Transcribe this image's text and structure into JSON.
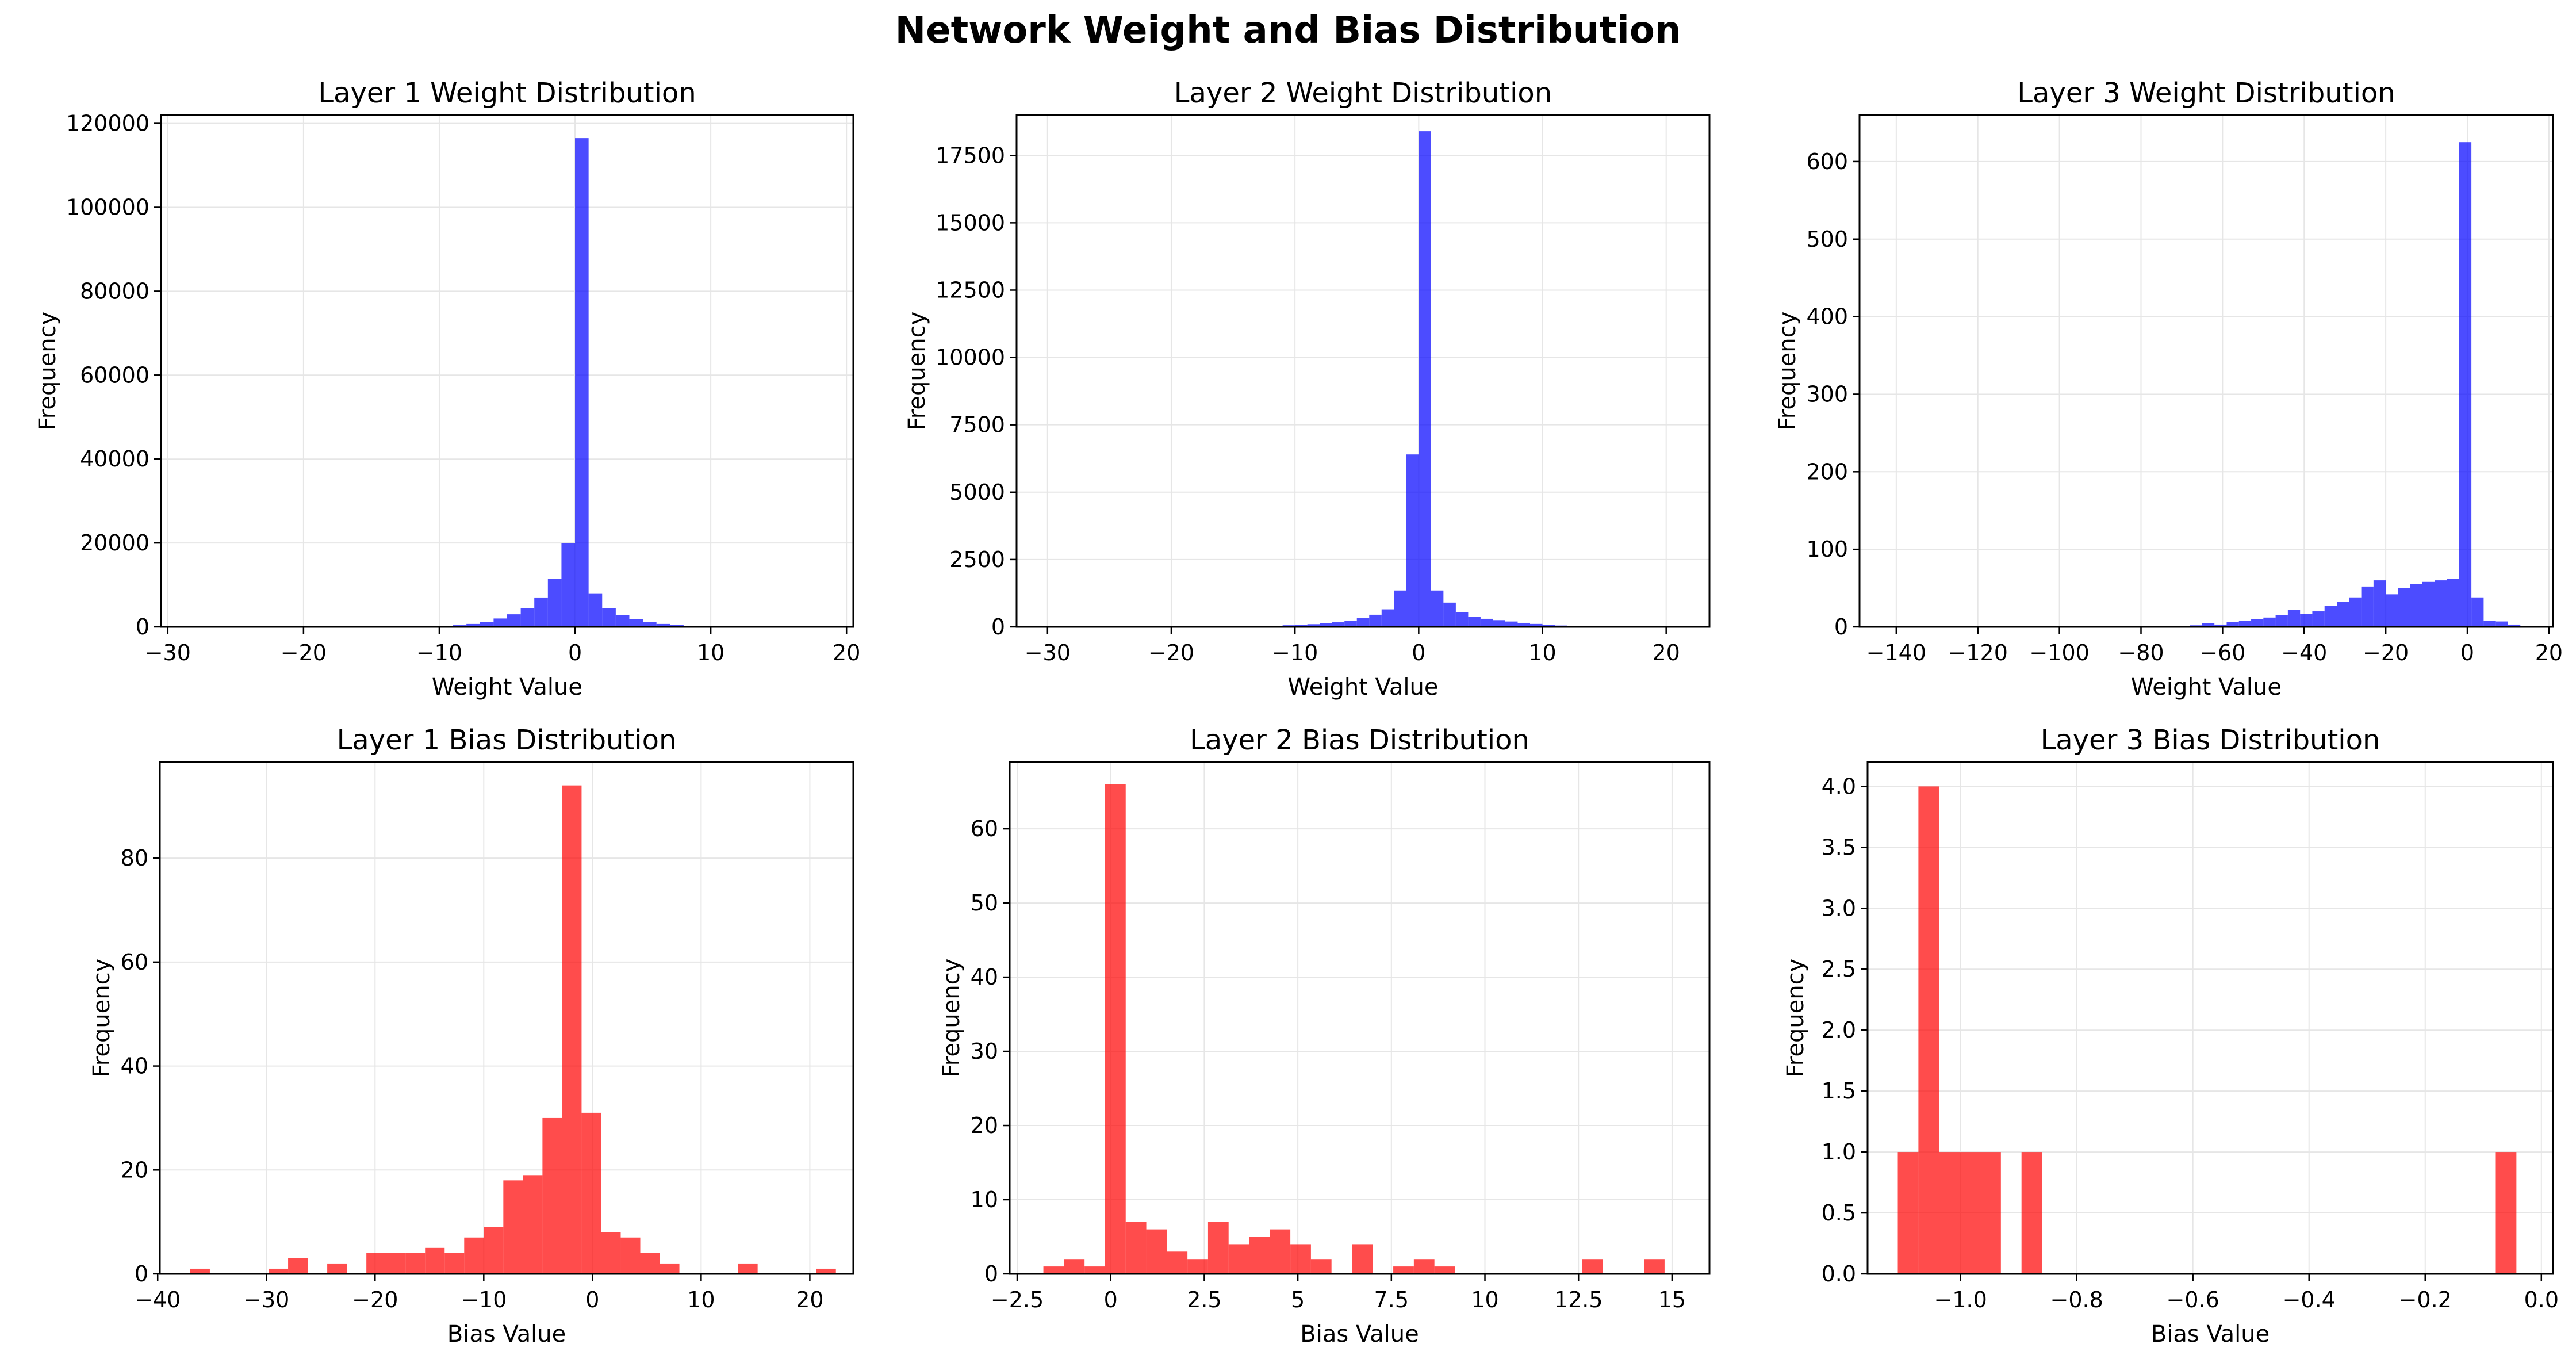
{
  "figure": {
    "title": "Network Weight and Bias Distribution"
  },
  "chart_data": [
    {
      "type": "bar",
      "title": "Layer 1 Weight Distribution",
      "xlabel": "Weight Value",
      "ylabel": "Frequency",
      "color": "#0000ff",
      "xlim": [
        -30.5,
        20.5
      ],
      "ylim": [
        0,
        122000
      ],
      "grid": true,
      "xticks": [
        -30,
        -20,
        -10,
        0,
        10,
        20
      ],
      "yticks": [
        0,
        20000,
        40000,
        60000,
        80000,
        100000,
        120000
      ],
      "bins": [
        {
          "x0": -13.0,
          "x1": -12.0,
          "y": 50
        },
        {
          "x0": -12.0,
          "x1": -11.0,
          "y": 80
        },
        {
          "x0": -11.0,
          "x1": -10.0,
          "y": 120
        },
        {
          "x0": -10.0,
          "x1": -9.0,
          "y": 200
        },
        {
          "x0": -9.0,
          "x1": -8.0,
          "y": 400
        },
        {
          "x0": -8.0,
          "x1": -7.0,
          "y": 700
        },
        {
          "x0": -7.0,
          "x1": -6.0,
          "y": 1200
        },
        {
          "x0": -6.0,
          "x1": -5.0,
          "y": 2000
        },
        {
          "x0": -5.0,
          "x1": -4.0,
          "y": 3000
        },
        {
          "x0": -4.0,
          "x1": -3.0,
          "y": 4500
        },
        {
          "x0": -3.0,
          "x1": -2.0,
          "y": 7000
        },
        {
          "x0": -2.0,
          "x1": -1.0,
          "y": 11500
        },
        {
          "x0": -1.0,
          "x1": 0.0,
          "y": 20000
        },
        {
          "x0": 0.0,
          "x1": 1.0,
          "y": 116500
        },
        {
          "x0": 1.0,
          "x1": 2.0,
          "y": 8000
        },
        {
          "x0": 2.0,
          "x1": 3.0,
          "y": 4500
        },
        {
          "x0": 3.0,
          "x1": 4.0,
          "y": 2800
        },
        {
          "x0": 4.0,
          "x1": 5.0,
          "y": 1800
        },
        {
          "x0": 5.0,
          "x1": 6.0,
          "y": 1100
        },
        {
          "x0": 6.0,
          "x1": 7.0,
          "y": 700
        },
        {
          "x0": 7.0,
          "x1": 8.0,
          "y": 450
        },
        {
          "x0": 8.0,
          "x1": 9.0,
          "y": 250
        },
        {
          "x0": 9.0,
          "x1": 10.0,
          "y": 150
        },
        {
          "x0": 10.0,
          "x1": 11.0,
          "y": 80
        }
      ]
    },
    {
      "type": "bar",
      "title": "Layer 2 Weight Distribution",
      "xlabel": "Weight Value",
      "ylabel": "Frequency",
      "color": "#0000ff",
      "xlim": [
        -32.5,
        23.5
      ],
      "ylim": [
        0,
        19000
      ],
      "grid": true,
      "xticks": [
        -30,
        -20,
        -10,
        0,
        10,
        20
      ],
      "yticks": [
        0,
        2500,
        5000,
        7500,
        10000,
        12500,
        15000,
        17500
      ],
      "bins": [
        {
          "x0": -14.0,
          "x1": -13.0,
          "y": 10
        },
        {
          "x0": -13.0,
          "x1": -12.0,
          "y": 20
        },
        {
          "x0": -12.0,
          "x1": -11.0,
          "y": 40
        },
        {
          "x0": -11.0,
          "x1": -10.0,
          "y": 60
        },
        {
          "x0": -10.0,
          "x1": -9.0,
          "y": 80
        },
        {
          "x0": -9.0,
          "x1": -8.0,
          "y": 100
        },
        {
          "x0": -8.0,
          "x1": -7.0,
          "y": 130
        },
        {
          "x0": -7.0,
          "x1": -6.0,
          "y": 170
        },
        {
          "x0": -6.0,
          "x1": -5.0,
          "y": 230
        },
        {
          "x0": -5.0,
          "x1": -4.0,
          "y": 320
        },
        {
          "x0": -4.0,
          "x1": -3.0,
          "y": 450
        },
        {
          "x0": -3.0,
          "x1": -2.0,
          "y": 650
        },
        {
          "x0": -2.0,
          "x1": -1.0,
          "y": 1350
        },
        {
          "x0": -1.0,
          "x1": 0.0,
          "y": 6400
        },
        {
          "x0": 0.0,
          "x1": 1.0,
          "y": 18400
        },
        {
          "x0": 1.0,
          "x1": 2.0,
          "y": 1350
        },
        {
          "x0": 2.0,
          "x1": 3.0,
          "y": 900
        },
        {
          "x0": 3.0,
          "x1": 4.0,
          "y": 550
        },
        {
          "x0": 4.0,
          "x1": 5.0,
          "y": 380
        },
        {
          "x0": 5.0,
          "x1": 6.0,
          "y": 300
        },
        {
          "x0": 6.0,
          "x1": 7.0,
          "y": 250
        },
        {
          "x0": 7.0,
          "x1": 8.0,
          "y": 200
        },
        {
          "x0": 8.0,
          "x1": 9.0,
          "y": 150
        },
        {
          "x0": 9.0,
          "x1": 10.0,
          "y": 110
        },
        {
          "x0": 10.0,
          "x1": 11.0,
          "y": 80
        },
        {
          "x0": 11.0,
          "x1": 12.0,
          "y": 50
        },
        {
          "x0": 12.0,
          "x1": 13.0,
          "y": 30
        },
        {
          "x0": 13.0,
          "x1": 14.0,
          "y": 15
        }
      ]
    },
    {
      "type": "bar",
      "title": "Layer 3 Weight Distribution",
      "xlabel": "Weight Value",
      "ylabel": "Frequency",
      "color": "#0000ff",
      "xlim": [
        -149,
        21
      ],
      "ylim": [
        0,
        660
      ],
      "grid": true,
      "xticks": [
        -140,
        -120,
        -100,
        -80,
        -60,
        -40,
        -20,
        0,
        20
      ],
      "yticks": [
        0,
        100,
        200,
        300,
        400,
        500,
        600
      ],
      "bins": [
        {
          "x0": -140.0,
          "x1": -137.0,
          "y": 1
        },
        {
          "x0": -119.0,
          "x1": -116.0,
          "y": 1
        },
        {
          "x0": -101.0,
          "x1": -98.0,
          "y": 1
        },
        {
          "x0": -86.0,
          "x1": -83.0,
          "y": 1
        },
        {
          "x0": -80.0,
          "x1": -77.0,
          "y": 1
        },
        {
          "x0": -74.0,
          "x1": -71.0,
          "y": 1
        },
        {
          "x0": -68.0,
          "x1": -65.0,
          "y": 2
        },
        {
          "x0": -65.0,
          "x1": -62.0,
          "y": 5
        },
        {
          "x0": -62.0,
          "x1": -59.0,
          "y": 3
        },
        {
          "x0": -59.0,
          "x1": -56.0,
          "y": 6
        },
        {
          "x0": -56.0,
          "x1": -53.0,
          "y": 8
        },
        {
          "x0": -53.0,
          "x1": -50.0,
          "y": 10
        },
        {
          "x0": -50.0,
          "x1": -47.0,
          "y": 12
        },
        {
          "x0": -47.0,
          "x1": -44.0,
          "y": 15
        },
        {
          "x0": -44.0,
          "x1": -41.0,
          "y": 22
        },
        {
          "x0": -41.0,
          "x1": -38.0,
          "y": 17
        },
        {
          "x0": -38.0,
          "x1": -35.0,
          "y": 20
        },
        {
          "x0": -35.0,
          "x1": -32.0,
          "y": 27
        },
        {
          "x0": -32.0,
          "x1": -29.0,
          "y": 32
        },
        {
          "x0": -29.0,
          "x1": -26.0,
          "y": 38
        },
        {
          "x0": -26.0,
          "x1": -23.0,
          "y": 52
        },
        {
          "x0": -23.0,
          "x1": -20.0,
          "y": 60
        },
        {
          "x0": -20.0,
          "x1": -17.0,
          "y": 42
        },
        {
          "x0": -17.0,
          "x1": -14.0,
          "y": 50
        },
        {
          "x0": -14.0,
          "x1": -11.0,
          "y": 55
        },
        {
          "x0": -11.0,
          "x1": -8.0,
          "y": 58
        },
        {
          "x0": -8.0,
          "x1": -5.0,
          "y": 60
        },
        {
          "x0": -5.0,
          "x1": -2.0,
          "y": 62
        },
        {
          "x0": -2.0,
          "x1": 1.0,
          "y": 625
        },
        {
          "x0": 1.0,
          "x1": 4.0,
          "y": 38
        },
        {
          "x0": 4.0,
          "x1": 7.0,
          "y": 8
        },
        {
          "x0": 7.0,
          "x1": 10.0,
          "y": 7
        },
        {
          "x0": 10.0,
          "x1": 13.0,
          "y": 3
        }
      ]
    },
    {
      "type": "bar",
      "title": "Layer 1 Bias Distribution",
      "xlabel": "Bias Value",
      "ylabel": "Frequency",
      "color": "#ff0000",
      "xlim": [
        -39.8,
        24
      ],
      "ylim": [
        0,
        98.5
      ],
      "grid": true,
      "xticks": [
        -40,
        -30,
        -20,
        -10,
        0,
        10,
        20
      ],
      "yticks": [
        0,
        20,
        40,
        60,
        80
      ],
      "bins": [
        {
          "x0": -37.0,
          "x1": -35.2,
          "y": 1
        },
        {
          "x0": -35.2,
          "x1": -33.4,
          "y": 0
        },
        {
          "x0": -33.4,
          "x1": -31.6,
          "y": 0
        },
        {
          "x0": -31.6,
          "x1": -29.8,
          "y": 0
        },
        {
          "x0": -29.8,
          "x1": -28.0,
          "y": 1
        },
        {
          "x0": -28.0,
          "x1": -26.2,
          "y": 3
        },
        {
          "x0": -26.2,
          "x1": -24.4,
          "y": 0
        },
        {
          "x0": -24.4,
          "x1": -22.6,
          "y": 2
        },
        {
          "x0": -22.6,
          "x1": -20.8,
          "y": 0
        },
        {
          "x0": -20.8,
          "x1": -19.0,
          "y": 4
        },
        {
          "x0": -19.0,
          "x1": -17.2,
          "y": 4
        },
        {
          "x0": -17.2,
          "x1": -15.4,
          "y": 4
        },
        {
          "x0": -15.4,
          "x1": -13.6,
          "y": 5
        },
        {
          "x0": -13.6,
          "x1": -11.8,
          "y": 4
        },
        {
          "x0": -11.8,
          "x1": -10.0,
          "y": 7
        },
        {
          "x0": -10.0,
          "x1": -8.2,
          "y": 9
        },
        {
          "x0": -8.2,
          "x1": -6.4,
          "y": 18
        },
        {
          "x0": -6.4,
          "x1": -4.6,
          "y": 19
        },
        {
          "x0": -4.6,
          "x1": -2.8,
          "y": 30
        },
        {
          "x0": -2.8,
          "x1": -1.0,
          "y": 94
        },
        {
          "x0": -1.0,
          "x1": 0.8,
          "y": 31
        },
        {
          "x0": 0.8,
          "x1": 2.6,
          "y": 8
        },
        {
          "x0": 2.6,
          "x1": 4.4,
          "y": 7
        },
        {
          "x0": 4.4,
          "x1": 6.2,
          "y": 4
        },
        {
          "x0": 6.2,
          "x1": 8.0,
          "y": 2
        },
        {
          "x0": 8.0,
          "x1": 9.8,
          "y": 0
        },
        {
          "x0": 9.8,
          "x1": 11.6,
          "y": 0
        },
        {
          "x0": 11.6,
          "x1": 13.4,
          "y": 0
        },
        {
          "x0": 13.4,
          "x1": 15.2,
          "y": 2
        },
        {
          "x0": 15.2,
          "x1": 17.0,
          "y": 0
        },
        {
          "x0": 17.0,
          "x1": 18.8,
          "y": 0
        },
        {
          "x0": 18.8,
          "x1": 20.6,
          "y": 0
        },
        {
          "x0": 20.6,
          "x1": 22.4,
          "y": 1
        }
      ]
    },
    {
      "type": "bar",
      "title": "Layer 2 Bias Distribution",
      "xlabel": "Bias Value",
      "ylabel": "Frequency",
      "color": "#ff0000",
      "xlim": [
        -2.7,
        16.0
      ],
      "ylim": [
        0,
        69
      ],
      "grid": true,
      "xticks": [
        -2.5,
        0.0,
        2.5,
        5.0,
        7.5,
        10.0,
        12.5,
        15.0
      ],
      "yticks": [
        0,
        10,
        20,
        30,
        40,
        50,
        60
      ],
      "bins": [
        {
          "x0": -1.8,
          "x1": -1.25,
          "y": 1
        },
        {
          "x0": -1.25,
          "x1": -0.7,
          "y": 2
        },
        {
          "x0": -0.7,
          "x1": -0.15,
          "y": 1
        },
        {
          "x0": -0.15,
          "x1": 0.4,
          "y": 66
        },
        {
          "x0": 0.4,
          "x1": 0.95,
          "y": 7
        },
        {
          "x0": 0.95,
          "x1": 1.5,
          "y": 6
        },
        {
          "x0": 1.5,
          "x1": 2.05,
          "y": 3
        },
        {
          "x0": 2.05,
          "x1": 2.6,
          "y": 2
        },
        {
          "x0": 2.6,
          "x1": 3.15,
          "y": 7
        },
        {
          "x0": 3.15,
          "x1": 3.7,
          "y": 4
        },
        {
          "x0": 3.7,
          "x1": 4.25,
          "y": 5
        },
        {
          "x0": 4.25,
          "x1": 4.8,
          "y": 6
        },
        {
          "x0": 4.8,
          "x1": 5.35,
          "y": 4
        },
        {
          "x0": 5.35,
          "x1": 5.9,
          "y": 2
        },
        {
          "x0": 5.9,
          "x1": 6.45,
          "y": 0
        },
        {
          "x0": 6.45,
          "x1": 7.0,
          "y": 4
        },
        {
          "x0": 7.0,
          "x1": 7.55,
          "y": 0
        },
        {
          "x0": 7.55,
          "x1": 8.1,
          "y": 1
        },
        {
          "x0": 8.1,
          "x1": 8.65,
          "y": 2
        },
        {
          "x0": 8.65,
          "x1": 9.2,
          "y": 1
        },
        {
          "x0": 12.6,
          "x1": 13.15,
          "y": 2
        },
        {
          "x0": 14.25,
          "x1": 14.8,
          "y": 2
        }
      ]
    },
    {
      "type": "bar",
      "title": "Layer 3 Bias Distribution",
      "xlabel": "Bias Value",
      "ylabel": "Frequency",
      "color": "#ff0000",
      "xlim": [
        -1.16,
        0.02
      ],
      "ylim": [
        0,
        4.2
      ],
      "grid": true,
      "xticks": [
        -1.0,
        -0.8,
        -0.6,
        -0.4,
        -0.2,
        0.0
      ],
      "xtick_labels": [
        "−1.0",
        "−0.8",
        "−0.6",
        "−0.4",
        "−0.2",
        "0.0"
      ],
      "yticks": [
        0.0,
        0.5,
        1.0,
        1.5,
        2.0,
        2.5,
        3.0,
        3.5,
        4.0
      ],
      "bins": [
        {
          "x0": -1.108,
          "x1": -1.0725,
          "y": 1
        },
        {
          "x0": -1.0725,
          "x1": -1.037,
          "y": 4
        },
        {
          "x0": -1.037,
          "x1": -1.0015,
          "y": 1
        },
        {
          "x0": -1.0015,
          "x1": -0.966,
          "y": 1
        },
        {
          "x0": -0.966,
          "x1": -0.9305,
          "y": 1
        },
        {
          "x0": -0.895,
          "x1": -0.8595,
          "y": 1
        },
        {
          "x0": -0.0785,
          "x1": -0.043,
          "y": 1
        }
      ]
    }
  ]
}
